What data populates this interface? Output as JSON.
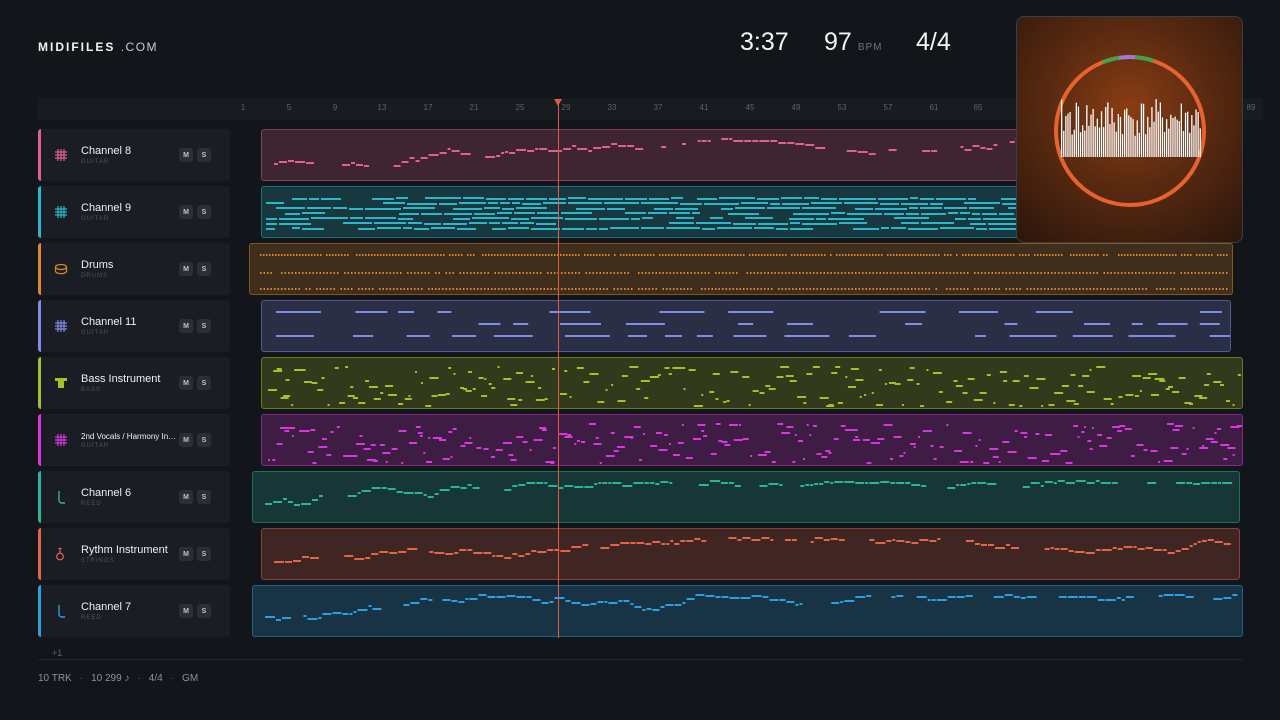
{
  "brand": {
    "name": "MIDIFILES",
    "suffix": ".COM"
  },
  "transport": {
    "time": "3:37",
    "bpm": "97",
    "bpm_unit": "BPM",
    "signature": "4/4"
  },
  "ruler": {
    "ticks": [
      "1",
      "5",
      "9",
      "13",
      "17",
      "21",
      "25",
      "29",
      "33",
      "37",
      "41",
      "45",
      "49",
      "53",
      "57",
      "61",
      "65",
      "89"
    ]
  },
  "tracks": [
    {
      "name": "Channel 8",
      "type": "GUITAR",
      "color": "#e0608f",
      "icon": "guitar-grid-icon"
    },
    {
      "name": "Channel 9",
      "type": "GUITAR",
      "color": "#2bb7c9",
      "icon": "guitar-grid-icon"
    },
    {
      "name": "Drums",
      "type": "DRUMS",
      "color": "#e0872a",
      "icon": "drum-icon"
    },
    {
      "name": "Channel 11",
      "type": "GUITAR",
      "color": "#7f8de6",
      "icon": "guitar-grid-icon"
    },
    {
      "name": "Bass Instrument",
      "type": "BASS",
      "color": "#a4c02a",
      "icon": "bass-icon"
    },
    {
      "name": "2nd Vocals / Harmony Ins...",
      "type": "GUITAR",
      "color": "#d936e0",
      "icon": "guitar-grid-icon"
    },
    {
      "name": "Channel 6",
      "type": "REED",
      "color": "#2bb39e",
      "icon": "reed-icon"
    },
    {
      "name": "Rythm Instrument",
      "type": "STRINGS",
      "color": "#e5644a",
      "icon": "strings-icon"
    },
    {
      "name": "Channel 7",
      "type": "REED",
      "color": "#2aa0e0",
      "icon": "reed-icon"
    }
  ],
  "buttons": {
    "mute": "M",
    "solo": "S"
  },
  "more_tracks": "+1",
  "footer": {
    "tracks": "10 TRK",
    "notes": "10 299 ♪",
    "signature": "4/4",
    "standard": "GM"
  },
  "visualizer": {
    "ring_color": "#e8622c",
    "accent_colors": [
      "#3fa34d",
      "#9a7bd8"
    ]
  }
}
